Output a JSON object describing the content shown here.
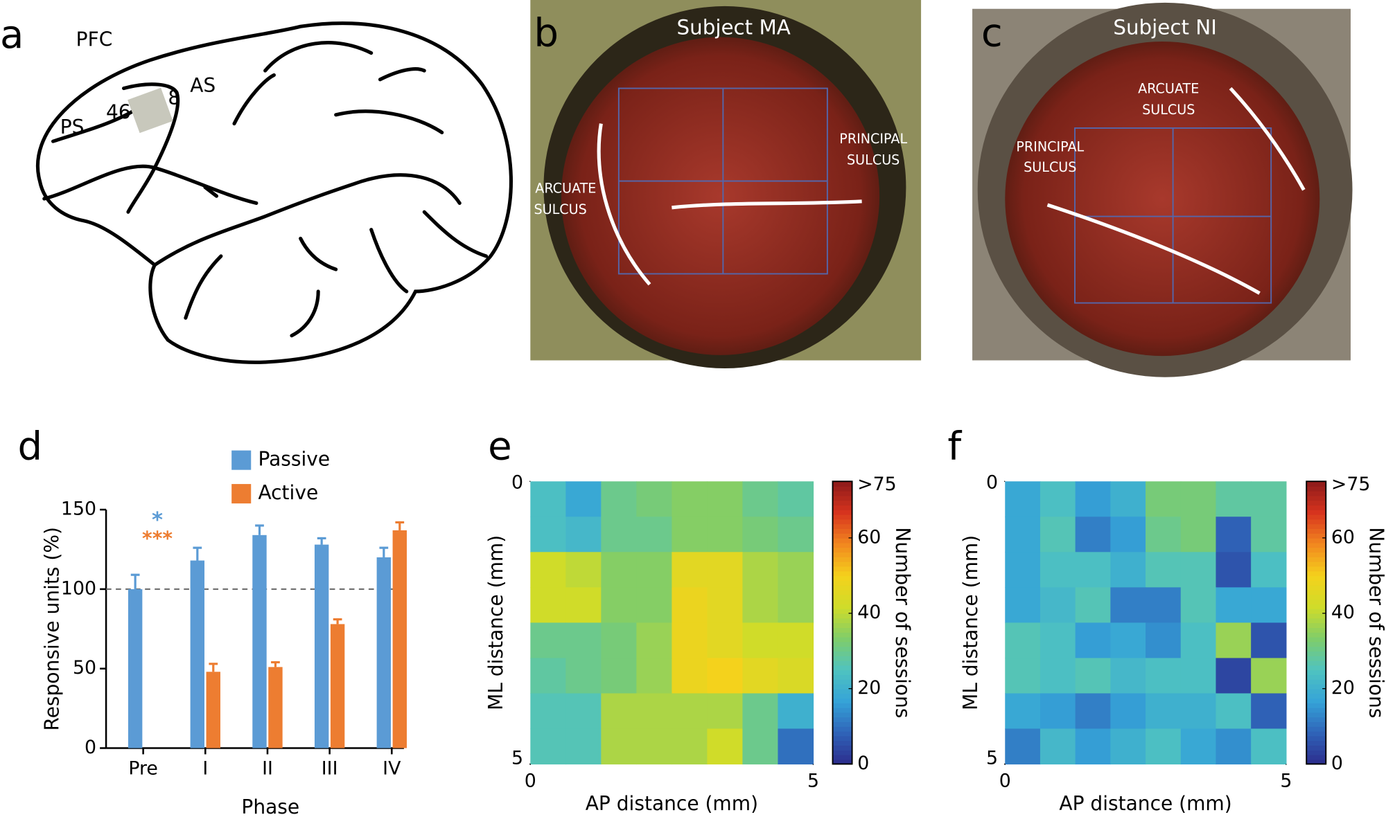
{
  "figure": {
    "panel_labels": [
      "a",
      "b",
      "c",
      "d",
      "e",
      "f"
    ],
    "brain_labels": [
      "PFC",
      "PS",
      "46",
      "8",
      "AS"
    ],
    "photo_b": {
      "title": "Subject MA",
      "arcuate": [
        "ARCUATE",
        "SULCUS"
      ],
      "principal": [
        "PRINCIPAL",
        "SULCUS"
      ]
    },
    "photo_c": {
      "title": "Subject NI",
      "arcuate": [
        "ARCUATE",
        "SULCUS"
      ],
      "principal": [
        "PRINCIPAL",
        "SULCUS"
      ]
    }
  },
  "chart_data": [
    {
      "type": "bar",
      "categories": [
        "Pre",
        "I",
        "II",
        "III",
        "IV"
      ],
      "series": [
        {
          "name": "Passive",
          "color": "#5b9bd5",
          "values": [
            100,
            118,
            134,
            128,
            120
          ],
          "errors": [
            9,
            8,
            6,
            4,
            6
          ]
        },
        {
          "name": "Active",
          "color": "#ed7d31",
          "values": [
            null,
            48,
            51,
            78,
            137
          ],
          "errors": [
            null,
            5,
            3,
            3,
            5
          ]
        }
      ],
      "ylim": [
        0,
        150
      ],
      "yticks": [
        0,
        50,
        100,
        150
      ],
      "ylabel": "Responsive units (%)",
      "xlabel": "Phase",
      "reference_line": 100,
      "annotations": [
        {
          "text": "*",
          "color": "#5b9bd5"
        },
        {
          "text": "***",
          "color": "#ed7d31"
        }
      ]
    },
    {
      "type": "heatmap",
      "values": [
        [
          24,
          18,
          30,
          32,
          34,
          34,
          30,
          28
        ],
        [
          24,
          22,
          30,
          30,
          34,
          34,
          32,
          30
        ],
        [
          42,
          40,
          34,
          34,
          46,
          46,
          38,
          36
        ],
        [
          42,
          42,
          34,
          34,
          48,
          46,
          38,
          36
        ],
        [
          30,
          30,
          32,
          36,
          48,
          46,
          42,
          42
        ],
        [
          28,
          30,
          32,
          36,
          48,
          50,
          46,
          44
        ],
        [
          26,
          26,
          38,
          38,
          38,
          38,
          30,
          20
        ],
        [
          26,
          26,
          38,
          38,
          38,
          42,
          30,
          10
        ]
      ],
      "xlim": [
        0,
        5
      ],
      "xticks": [
        0,
        5
      ],
      "ylim": [
        0,
        5
      ],
      "yticks": [
        0,
        5
      ],
      "y_inverted": true,
      "xlabel": "AP distance (mm)",
      "ylabel": "ML distance (mm)",
      "zlim": [
        0,
        75
      ],
      "zticks": [
        0,
        20,
        40,
        60,
        {
          "value": 75,
          "label": ">75"
        }
      ],
      "colorbar_label": "Number of sessions",
      "colormap": [
        "#2c2c8c",
        "#2f63b8",
        "#35a3d8",
        "#4fc3c0",
        "#7fcd6a",
        "#cfdc2a",
        "#f4d21c",
        "#f2881f",
        "#d8341e",
        "#8c1a1a"
      ]
    },
    {
      "type": "heatmap",
      "values": [
        [
          18,
          24,
          16,
          20,
          32,
          32,
          28,
          28
        ],
        [
          18,
          26,
          12,
          16,
          30,
          32,
          8,
          28
        ],
        [
          18,
          24,
          24,
          20,
          26,
          26,
          6,
          24
        ],
        [
          18,
          22,
          26,
          12,
          12,
          26,
          18,
          18
        ],
        [
          26,
          24,
          16,
          18,
          14,
          24,
          36,
          6
        ],
        [
          26,
          24,
          26,
          22,
          24,
          24,
          4,
          36
        ],
        [
          18,
          16,
          12,
          16,
          20,
          20,
          24,
          8
        ],
        [
          12,
          22,
          16,
          20,
          24,
          18,
          14,
          24
        ]
      ],
      "xlim": [
        0,
        5
      ],
      "xticks": [
        0,
        5
      ],
      "ylim": [
        0,
        5
      ],
      "yticks": [
        0,
        5
      ],
      "y_inverted": true,
      "xlabel": "AP distance (mm)",
      "ylabel": "ML distance (mm)",
      "zlim": [
        0,
        75
      ],
      "zticks": [
        0,
        20,
        40,
        60,
        {
          "value": 75,
          "label": ">75"
        }
      ],
      "colorbar_label": "Number of sessions",
      "colormap": [
        "#2c2c8c",
        "#2f63b8",
        "#35a3d8",
        "#4fc3c0",
        "#7fcd6a",
        "#cfdc2a",
        "#f4d21c",
        "#f2881f",
        "#d8341e",
        "#8c1a1a"
      ]
    }
  ]
}
